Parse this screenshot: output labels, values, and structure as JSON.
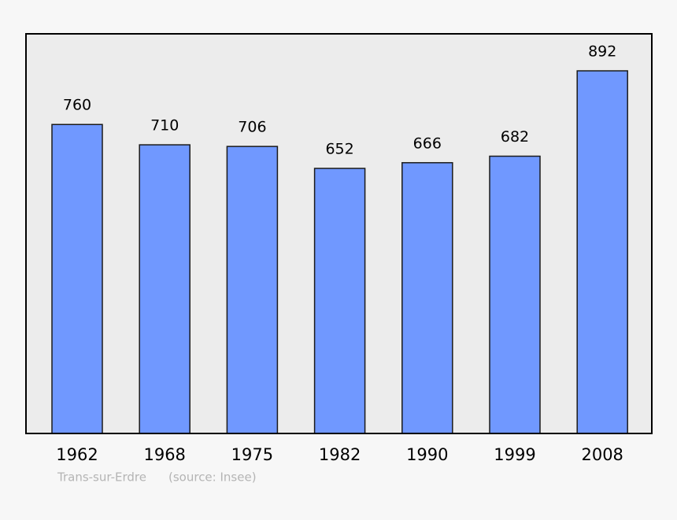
{
  "chart_data": {
    "type": "bar",
    "categories": [
      "1962",
      "1968",
      "1975",
      "1982",
      "1990",
      "1999",
      "2008"
    ],
    "values": [
      760,
      710,
      706,
      652,
      666,
      682,
      892
    ],
    "color": "#7098ff",
    "ylim": [
      0,
      983
    ],
    "notes": [
      "Trans-sur-Erdre",
      "(source: Insee)"
    ]
  }
}
